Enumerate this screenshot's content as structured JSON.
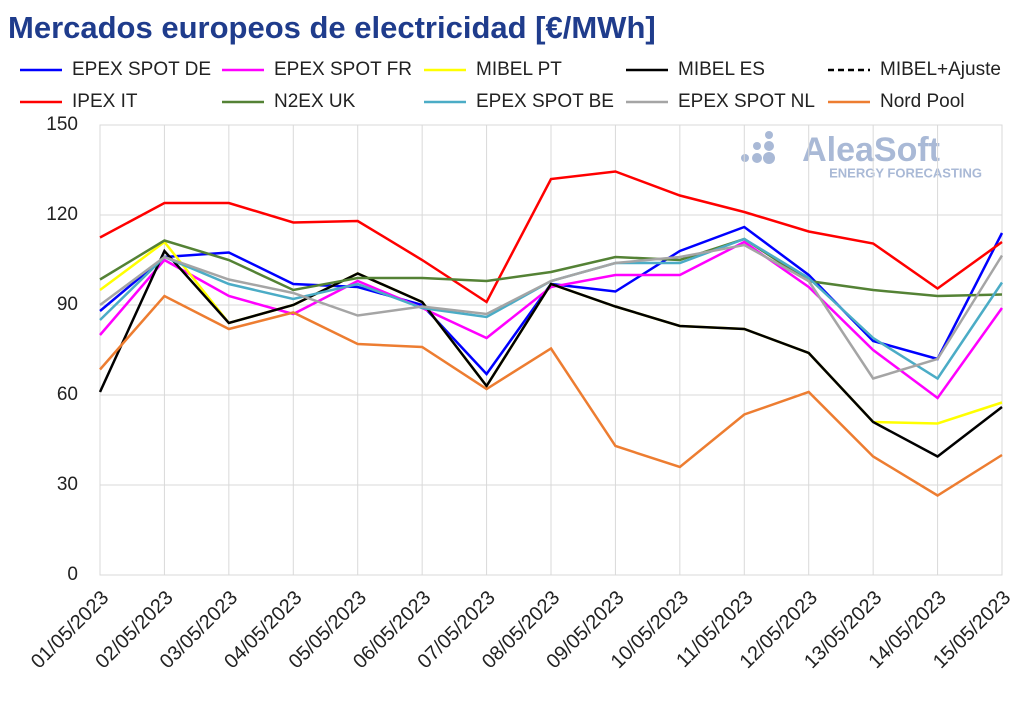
{
  "chart_data": {
    "type": "line",
    "title": "Mercados europeos de electricidad [€/MWh]",
    "watermark": {
      "name": "AleaSoft",
      "tagline": "ENERGY FORECASTING"
    },
    "categories": [
      "01/05/2023",
      "02/05/2023",
      "03/05/2023",
      "04/05/2023",
      "05/05/2023",
      "06/05/2023",
      "07/05/2023",
      "08/05/2023",
      "09/05/2023",
      "10/05/2023",
      "11/05/2023",
      "12/05/2023",
      "13/05/2023",
      "14/05/2023",
      "15/05/2023"
    ],
    "series": [
      {
        "name": "EPEX SPOT DE",
        "color": "#0000ff",
        "values": [
          88,
          106,
          107.5,
          97,
          96,
          90,
          67,
          97,
          94.5,
          108,
          116,
          100,
          78,
          72,
          114
        ]
      },
      {
        "name": "EPEX SPOT FR",
        "color": "#ff00ff",
        "values": [
          80,
          105,
          93,
          87,
          98,
          89,
          79,
          96,
          100,
          100,
          111,
          96,
          75,
          59,
          89
        ]
      },
      {
        "name": "MIBEL PT",
        "color": "#ffff00",
        "values": [
          95,
          111,
          84,
          90,
          100.5,
          91,
          63,
          97,
          89.5,
          83,
          82,
          74,
          51,
          50.5,
          57.5
        ]
      },
      {
        "name": "MIBEL ES",
        "color": "#000000",
        "values": [
          61,
          108,
          84,
          90,
          100.5,
          91,
          63,
          97,
          89.5,
          83,
          82,
          74,
          51,
          39.5,
          56
        ]
      },
      {
        "name": "MIBEL+Ajuste",
        "color": "#000000",
        "dashed": true,
        "values": [
          null,
          null,
          null,
          null,
          null,
          null,
          null,
          null,
          null,
          null,
          null,
          null,
          null,
          null,
          null
        ]
      },
      {
        "name": "IPEX IT",
        "color": "#ff0000",
        "values": [
          112.5,
          124,
          124,
          117.5,
          118,
          105,
          91,
          132,
          134.5,
          126.5,
          121,
          114.5,
          110.5,
          95.5,
          111
        ]
      },
      {
        "name": "N2EX UK",
        "color": "#548235",
        "values": [
          98.5,
          111.5,
          105,
          95,
          99,
          99,
          98,
          101,
          106,
          105,
          112,
          98,
          95,
          93,
          93.5
        ]
      },
      {
        "name": "EPEX SPOT BE",
        "color": "#4bacc6",
        "values": [
          85,
          106,
          97,
          92,
          97,
          89,
          86,
          98,
          104,
          104,
          112,
          99,
          79,
          65.5,
          97.5
        ]
      },
      {
        "name": "EPEX SPOT NL",
        "color": "#a5a5a5",
        "values": [
          90,
          106,
          98.5,
          94,
          86.5,
          89.5,
          87,
          98,
          104,
          106,
          110,
          98,
          65.5,
          72,
          106.5
        ]
      },
      {
        "name": "Nord Pool",
        "color": "#ed7d31",
        "values": [
          68.5,
          93,
          82,
          87.5,
          77,
          76,
          62,
          75.5,
          43,
          36,
          53.5,
          61,
          39.5,
          26.5,
          40
        ]
      }
    ],
    "ylim": [
      0,
      150
    ],
    "yticks": [
      0,
      30,
      60,
      90,
      120,
      150
    ],
    "grid": true
  }
}
